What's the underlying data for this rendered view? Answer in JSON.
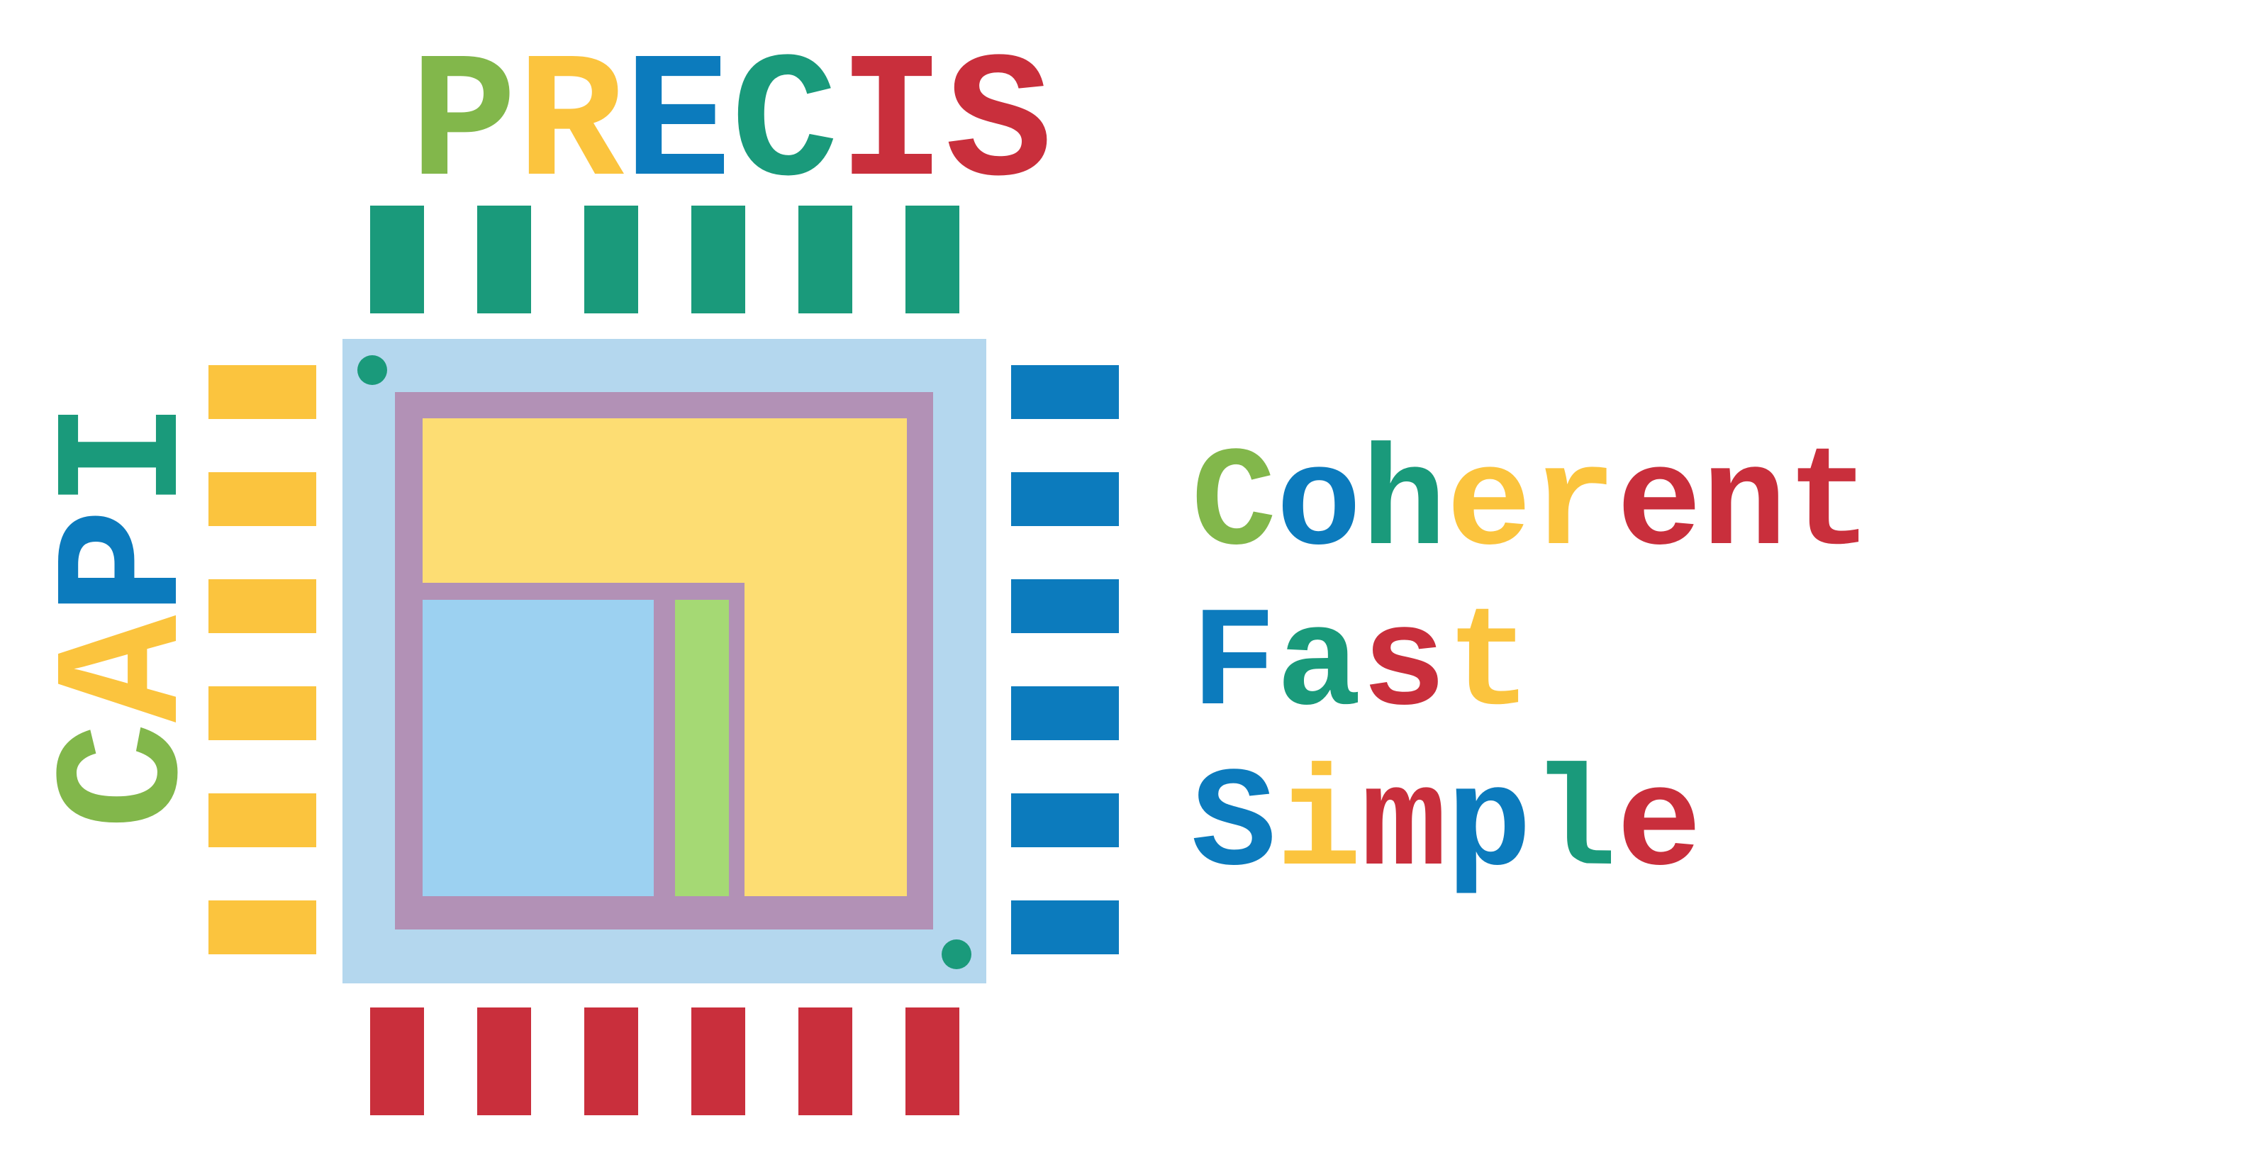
{
  "logo": {
    "top_word": [
      {
        "char": "P",
        "color": "#82b74b"
      },
      {
        "char": "R",
        "color": "#fbc43e"
      },
      {
        "char": "E",
        "color": "#0c7bbd"
      },
      {
        "char": "C",
        "color": "#1a9a7b"
      },
      {
        "char": "I",
        "color": "#c92f3c"
      },
      {
        "char": "S",
        "color": "#c92f3c"
      }
    ],
    "side_word": [
      {
        "char": "C",
        "color": "#82b74b"
      },
      {
        "char": "A",
        "color": "#fbc43e"
      },
      {
        "char": "P",
        "color": "#0c7bbd"
      },
      {
        "char": "I",
        "color": "#1a9a7b"
      }
    ],
    "taglines": [
      [
        {
          "char": "C",
          "color": "#82b74b"
        },
        {
          "char": "o",
          "color": "#0c7bbd"
        },
        {
          "char": "h",
          "color": "#1a9a7b"
        },
        {
          "char": "e",
          "color": "#fbc43e"
        },
        {
          "char": "r",
          "color": "#fbc43e"
        },
        {
          "char": "e",
          "color": "#c92f3c"
        },
        {
          "char": "n",
          "color": "#c92f3c"
        },
        {
          "char": "t",
          "color": "#c92f3c"
        }
      ],
      [
        {
          "char": "F",
          "color": "#0c7bbd"
        },
        {
          "char": "a",
          "color": "#1a9a7b"
        },
        {
          "char": "s",
          "color": "#c92f3c"
        },
        {
          "char": "t",
          "color": "#fbc43e"
        }
      ],
      [
        {
          "char": "S",
          "color": "#0c7bbd"
        },
        {
          "char": "i",
          "color": "#fbc43e"
        },
        {
          "char": "m",
          "color": "#c92f3c"
        },
        {
          "char": "p",
          "color": "#0c7bbd"
        },
        {
          "char": "l",
          "color": "#1a9a7b"
        },
        {
          "char": "e",
          "color": "#c92f3c"
        }
      ]
    ],
    "colors": {
      "top_pins": "#1a9a7b",
      "left_pins": "#fbc43e",
      "right_pins": "#0c7bbd",
      "bottom_pins": "#c92f3c",
      "chip_body": "#b4d7ee",
      "chip_frame": "#b291b6",
      "big_block": "#fddd73",
      "blue_block": "#9cd1f1",
      "green_block": "#a5d974",
      "corner_dot": "#1a9a7b"
    }
  }
}
